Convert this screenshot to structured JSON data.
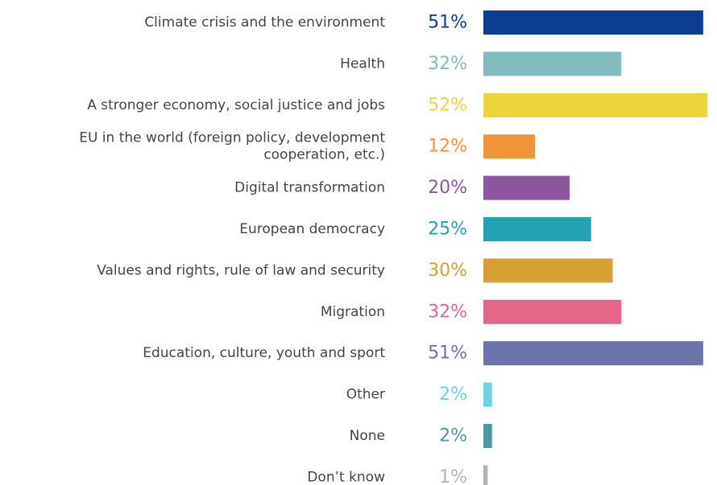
{
  "chart_data": {
    "type": "bar",
    "orientation": "horizontal",
    "xlim": [
      0,
      51
    ],
    "categories": [
      [
        "Climate crisis and the environment"
      ],
      [
        "Health"
      ],
      [
        "A stronger economy, social justice and jobs"
      ],
      [
        "EU in the world (foreign policy, development",
        "cooperation, etc.)"
      ],
      [
        "Digital transformation"
      ],
      [
        "European democracy"
      ],
      [
        "Values and rights, rule of law and security"
      ],
      [
        "Migration"
      ],
      [
        "Education, culture, youth and sport"
      ],
      [
        "Other"
      ],
      [
        "None"
      ],
      [
        "Don’t know"
      ]
    ],
    "values": [
      51,
      32,
      52,
      12,
      20,
      25,
      30,
      32,
      51,
      2,
      2,
      1
    ],
    "value_labels": [
      "51%",
      "32%",
      "52%",
      "12%",
      "20%",
      "25%",
      "30%",
      "32%",
      "51%",
      "2%",
      "2%",
      "1%"
    ],
    "colors": [
      "#0b3d91",
      "#7fbcbb",
      "#ecd43a",
      "#f0953a",
      "#8e55a0",
      "#21a3b4",
      "#d6a132",
      "#e4678a",
      "#6a74a9",
      "#6fd2e4",
      "#4b9a9e",
      "#b3b3b3"
    ],
    "grid": false,
    "legend": "none"
  }
}
